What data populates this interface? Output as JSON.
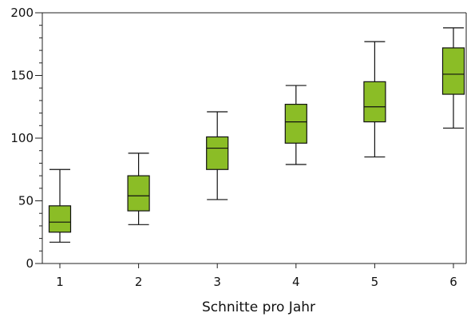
{
  "chart_data": {
    "type": "boxplot",
    "title": "",
    "xlabel": "Schnitte pro Jahr",
    "ylabel": "",
    "ylim": [
      0,
      200
    ],
    "yticks": [
      0,
      50,
      100,
      150,
      200
    ],
    "ygrid_minor_step": 10,
    "grid": false,
    "box_color": "#8bbd26",
    "categories": [
      "1",
      "2",
      "3",
      "4",
      "5",
      "6"
    ],
    "boxes": [
      {
        "category": "1",
        "whisker_low": 17,
        "q1": 25,
        "median": 33,
        "q3": 46,
        "whisker_high": 75
      },
      {
        "category": "2",
        "whisker_low": 31,
        "q1": 42,
        "median": 54,
        "q3": 70,
        "whisker_high": 88
      },
      {
        "category": "3",
        "whisker_low": 51,
        "q1": 75,
        "median": 92,
        "q3": 101,
        "whisker_high": 121
      },
      {
        "category": "4",
        "whisker_low": 79,
        "q1": 96,
        "median": 113,
        "q3": 127,
        "whisker_high": 142
      },
      {
        "category": "5",
        "whisker_low": 85,
        "q1": 113,
        "median": 125,
        "q3": 145,
        "whisker_high": 177
      },
      {
        "category": "6",
        "whisker_low": 108,
        "q1": 135,
        "median": 151,
        "q3": 172,
        "whisker_high": 188
      }
    ]
  }
}
